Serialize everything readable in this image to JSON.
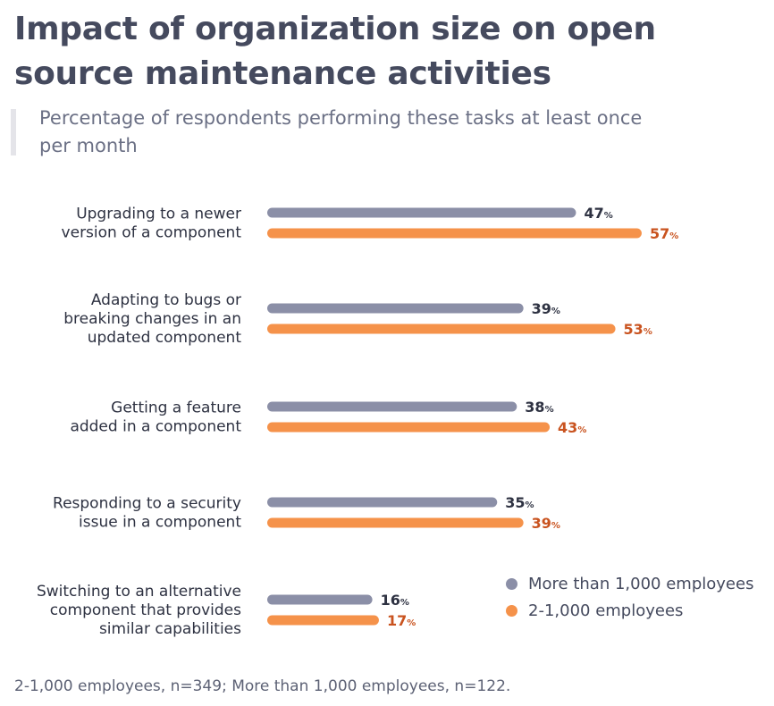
{
  "title": "Impact of organization size on open source maintenance activities",
  "subtitle": "Percentage of respondents performing these tasks at least once per month",
  "footnote": "2-1,000 employees, n=349; More than 1,000 employees, n=122.",
  "colors": {
    "large": "#8b8fa7",
    "small": "#f5924a",
    "small_text": "#c9531f",
    "large_text": "#2e3242"
  },
  "chart_data": {
    "type": "bar",
    "orientation": "horizontal",
    "categories": [
      "Upgrading to a newer version of a component",
      "Adapting to bugs or breaking changes in an updated component",
      "Getting a feature added in a component",
      "Responding to a security issue in a component",
      "Switching to an alternative component that provides similar capabilities"
    ],
    "category_lines": [
      [
        "Upgrading to a newer",
        "version of a component"
      ],
      [
        "Adapting to bugs or",
        "breaking changes in an",
        "updated component"
      ],
      [
        "Getting a feature",
        "added in a component"
      ],
      [
        "Responding to a security",
        "issue in a component"
      ],
      [
        "Switching to an alternative",
        "component that provides",
        "similar capabilities"
      ]
    ],
    "series": [
      {
        "name": "More than 1,000 employees",
        "values": [
          47,
          39,
          38,
          35,
          16
        ]
      },
      {
        "name": "2-1,000 employees",
        "values": [
          57,
          53,
          43,
          39,
          17
        ]
      }
    ],
    "unit": "%",
    "legend": "bottom-right",
    "grid": false
  }
}
